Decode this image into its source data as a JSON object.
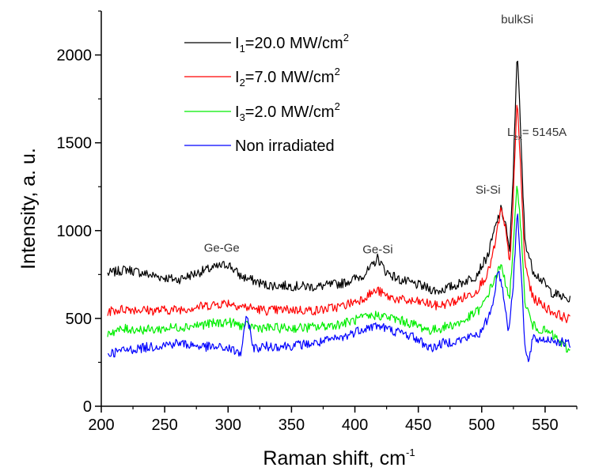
{
  "chart_data": {
    "type": "line",
    "title": "",
    "xlabel": {
      "main": "Raman shift, cm",
      "sup": "-1"
    },
    "ylabel": "Intensity, a. u.",
    "xlim": [
      205,
      570
    ],
    "ylim": [
      0,
      2250
    ],
    "x_ticks": [
      200,
      250,
      300,
      350,
      400,
      450,
      500,
      550
    ],
    "y_ticks": [
      0,
      500,
      1000,
      1500,
      2000
    ],
    "grid": false,
    "legend_position": "top-left",
    "series": [
      {
        "name": {
          "pre": "I",
          "sub": "1",
          "mid": "=20.0 MW/cm",
          "sup": "2"
        },
        "color": "#000000",
        "points": [
          [
            205,
            755
          ],
          [
            220,
            780
          ],
          [
            240,
            745
          ],
          [
            260,
            720
          ],
          [
            280,
            770
          ],
          [
            300,
            810
          ],
          [
            310,
            740
          ],
          [
            330,
            690
          ],
          [
            350,
            685
          ],
          [
            370,
            680
          ],
          [
            390,
            700
          ],
          [
            405,
            740
          ],
          [
            412,
            780
          ],
          [
            418,
            845
          ],
          [
            424,
            770
          ],
          [
            435,
            720
          ],
          [
            450,
            690
          ],
          [
            465,
            655
          ],
          [
            480,
            690
          ],
          [
            495,
            740
          ],
          [
            505,
            860
          ],
          [
            510,
            1000
          ],
          [
            515,
            1120
          ],
          [
            519,
            1040
          ],
          [
            522,
            860
          ],
          [
            525,
            1350
          ],
          [
            528,
            2050
          ],
          [
            531,
            1500
          ],
          [
            534,
            950
          ],
          [
            540,
            780
          ],
          [
            555,
            650
          ],
          [
            570,
            600
          ]
        ]
      },
      {
        "name": {
          "pre": "I",
          "sub": "2",
          "mid": "=7.0 MW/cm",
          "sup": "2"
        },
        "color": "#ff0000",
        "points": [
          [
            205,
            540
          ],
          [
            220,
            555
          ],
          [
            240,
            545
          ],
          [
            260,
            550
          ],
          [
            280,
            570
          ],
          [
            300,
            590
          ],
          [
            310,
            570
          ],
          [
            330,
            545
          ],
          [
            350,
            550
          ],
          [
            370,
            545
          ],
          [
            390,
            570
          ],
          [
            405,
            610
          ],
          [
            412,
            640
          ],
          [
            418,
            660
          ],
          [
            425,
            625
          ],
          [
            440,
            600
          ],
          [
            455,
            590
          ],
          [
            465,
            570
          ],
          [
            480,
            600
          ],
          [
            495,
            650
          ],
          [
            505,
            760
          ],
          [
            510,
            900
          ],
          [
            515,
            1120
          ],
          [
            519,
            1000
          ],
          [
            522,
            800
          ],
          [
            525,
            1200
          ],
          [
            528,
            1760
          ],
          [
            531,
            1300
          ],
          [
            534,
            820
          ],
          [
            540,
            620
          ],
          [
            555,
            540
          ],
          [
            570,
            490
          ]
        ]
      },
      {
        "name": {
          "pre": "I",
          "sub": "3",
          "mid": "=2.0 MW/cm",
          "sup": "2"
        },
        "color": "#00ee00",
        "points": [
          [
            205,
            420
          ],
          [
            220,
            440
          ],
          [
            240,
            435
          ],
          [
            260,
            450
          ],
          [
            280,
            465
          ],
          [
            300,
            480
          ],
          [
            310,
            460
          ],
          [
            330,
            445
          ],
          [
            350,
            445
          ],
          [
            370,
            450
          ],
          [
            390,
            470
          ],
          [
            405,
            500
          ],
          [
            418,
            520
          ],
          [
            430,
            500
          ],
          [
            445,
            470
          ],
          [
            460,
            430
          ],
          [
            470,
            450
          ],
          [
            485,
            480
          ],
          [
            500,
            560
          ],
          [
            510,
            720
          ],
          [
            515,
            800
          ],
          [
            519,
            700
          ],
          [
            522,
            620
          ],
          [
            525,
            900
          ],
          [
            528,
            1290
          ],
          [
            531,
            1000
          ],
          [
            534,
            600
          ],
          [
            540,
            460
          ],
          [
            555,
            410
          ],
          [
            570,
            310
          ]
        ]
      },
      {
        "name": {
          "text": "Non irradiated"
        },
        "color": "#0000ff",
        "points": [
          [
            205,
            300
          ],
          [
            220,
            320
          ],
          [
            240,
            340
          ],
          [
            260,
            360
          ],
          [
            280,
            340
          ],
          [
            300,
            330
          ],
          [
            310,
            300
          ],
          [
            315,
            520
          ],
          [
            320,
            330
          ],
          [
            330,
            340
          ],
          [
            350,
            345
          ],
          [
            370,
            360
          ],
          [
            390,
            390
          ],
          [
            405,
            440
          ],
          [
            418,
            460
          ],
          [
            430,
            430
          ],
          [
            445,
            400
          ],
          [
            460,
            330
          ],
          [
            470,
            360
          ],
          [
            485,
            380
          ],
          [
            500,
            420
          ],
          [
            508,
            560
          ],
          [
            513,
            780
          ],
          [
            517,
            650
          ],
          [
            521,
            420
          ],
          [
            525,
            700
          ],
          [
            528,
            1120
          ],
          [
            531,
            800
          ],
          [
            534,
            340
          ],
          [
            537,
            240
          ],
          [
            540,
            380
          ],
          [
            555,
            380
          ],
          [
            570,
            350
          ]
        ]
      }
    ],
    "annotations": [
      {
        "text": "Ge-Ge",
        "x": 295,
        "y": 880
      },
      {
        "text": "Ge-Si",
        "x": 418,
        "y": 870
      },
      {
        "text": "Si-Si",
        "x": 505,
        "y": 1210
      },
      {
        "text": "bulkSi",
        "x": 528,
        "y": 2180
      },
      {
        "pre": "L",
        "sub": "ex",
        "mid": "= 5145A",
        "x": 567,
        "y": 1540
      }
    ]
  }
}
